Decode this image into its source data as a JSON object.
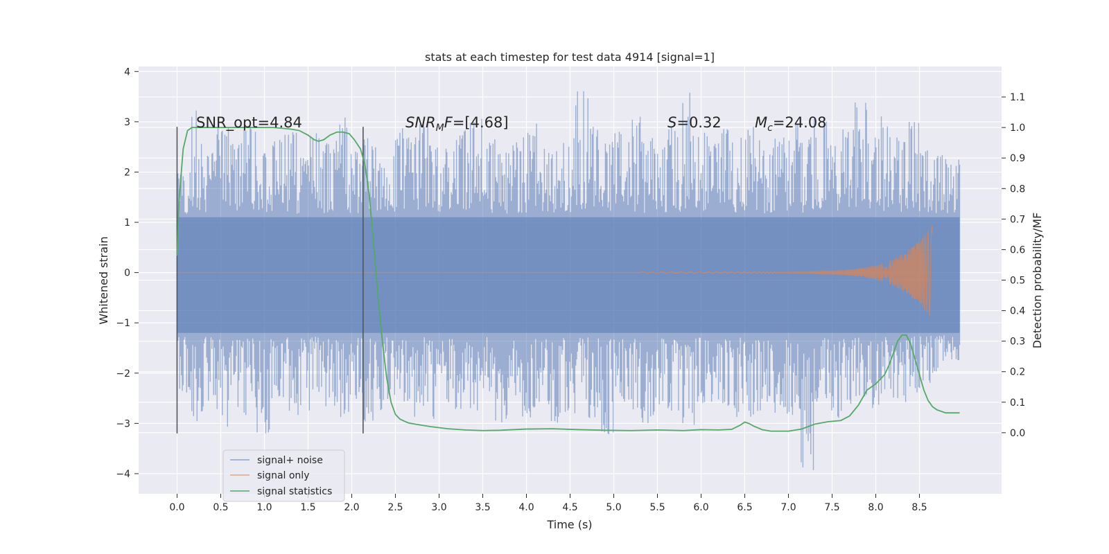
{
  "chart_data": {
    "type": "line",
    "title": "stats at each timestep for test data 4914 [signal=1]",
    "xlabel": "Time (s)",
    "ylabel": "Whitened strain",
    "ylabel_right": "Detection probability/MF",
    "xlim": [
      -0.44,
      9.44
    ],
    "ylim": [
      -4.4,
      4.1
    ],
    "ylim_right": [
      -0.2,
      1.2
    ],
    "x_ticks": [
      "0.0",
      "0.5",
      "1.0",
      "1.5",
      "2.0",
      "2.5",
      "3.0",
      "3.5",
      "4.0",
      "4.5",
      "5.0",
      "5.5",
      "6.0",
      "6.5",
      "7.0",
      "7.5",
      "8.0",
      "8.5"
    ],
    "y_ticks": [
      "4",
      "3",
      "2",
      "1",
      "0",
      "−1",
      "−2",
      "−3",
      "−4"
    ],
    "y_ticks_right": [
      "1.1",
      "1.0",
      "0.9",
      "0.8",
      "0.7",
      "0.6",
      "0.5",
      "0.4",
      "0.3",
      "0.2",
      "0.1",
      "0.0"
    ],
    "vertical_markers": [
      0.0,
      2.13
    ],
    "vertical_marker_range": [
      -3.2,
      2.9
    ],
    "annotations": {
      "snr_opt": "SNR_opt=4.84",
      "snr_mf_sym": "SNR",
      "snr_mf_sub": "M",
      "snr_mf_sym2": "F",
      "snr_mf_val": "=[4.68]",
      "s_sym": "S",
      "s_val": "=0.32",
      "mc_sym": "M",
      "mc_sub": "c",
      "mc_val": "=24.08"
    },
    "series": [
      {
        "name": "signal+ noise",
        "color": "#4c72b0",
        "x_range": [
          0.0,
          8.96
        ],
        "base_envelope": [
          -1.2,
          1.1
        ],
        "spike_tops": [
          2.0,
          3.3,
          2.5,
          2.9,
          2.6,
          3.1,
          2.4,
          2.7,
          3.0,
          2.3,
          2.8,
          2.6,
          3.1,
          2.5,
          2.7,
          2.2,
          2.9,
          2.8,
          3.0,
          2.6,
          2.5,
          2.9,
          3.1,
          2.7,
          2.4,
          2.6,
          2.8,
          3.0,
          2.5,
          2.7,
          3.7,
          2.9,
          2.6,
          2.8,
          3.1,
          2.7,
          2.5,
          2.9,
          3.7,
          2.8,
          2.6,
          3.0,
          2.7,
          2.9,
          2.5,
          2.8,
          3.0,
          2.7,
          3.1,
          2.6,
          2.9,
          3.4,
          2.8,
          3.2,
          2.7,
          3.0,
          2.5,
          2.4,
          2.3
        ],
        "spike_bottoms": [
          -2.4,
          -3.0,
          -2.6,
          -3.1,
          -2.7,
          -2.9,
          -3.2,
          -2.5,
          -2.8,
          -3.0,
          -2.4,
          -2.7,
          -2.9,
          -2.6,
          -3.0,
          -2.8,
          -2.5,
          -2.9,
          -2.7,
          -3.0,
          -2.6,
          -2.8,
          -2.9,
          -2.4,
          -3.1,
          -2.7,
          -2.9,
          -2.6,
          -3.0,
          -2.8,
          -2.7,
          -2.9,
          -3.35,
          -2.6,
          -2.8,
          -3.0,
          -2.7,
          -2.9,
          -3.05,
          -2.6,
          -2.8,
          -2.7,
          -2.9,
          -3.0,
          -2.6,
          -2.8,
          -2.9,
          -4.0,
          -2.7,
          -2.9,
          -2.8,
          -2.6,
          -2.7,
          -2.5,
          -2.6,
          -2.4,
          -2.2,
          -2.0,
          -1.8
        ]
      },
      {
        "name": "signal only",
        "color": "#dd8452",
        "chirp_start": 5.3,
        "chirp_end": 8.65,
        "peak_amplitude": 0.95
      },
      {
        "name": "signal statistics",
        "color": "#55a868",
        "x": [
          0.0,
          0.02,
          0.07,
          0.12,
          0.17,
          0.25,
          0.35,
          0.5,
          0.7,
          0.9,
          1.1,
          1.3,
          1.4,
          1.5,
          1.57,
          1.62,
          1.68,
          1.75,
          1.83,
          1.9,
          1.97,
          2.03,
          2.1,
          2.15,
          2.2,
          2.25,
          2.3,
          2.35,
          2.4,
          2.45,
          2.5,
          2.55,
          2.6,
          2.65,
          2.75,
          2.9,
          3.1,
          3.3,
          3.5,
          3.7,
          4.0,
          4.3,
          4.6,
          4.9,
          5.2,
          5.5,
          5.8,
          6.0,
          6.2,
          6.35,
          6.45,
          6.5,
          6.55,
          6.6,
          6.7,
          6.8,
          7.0,
          7.15,
          7.3,
          7.45,
          7.6,
          7.7,
          7.8,
          7.9,
          8.0,
          8.1,
          8.15,
          8.2,
          8.25,
          8.3,
          8.35,
          8.4,
          8.45,
          8.5,
          8.55,
          8.6,
          8.65,
          8.7,
          8.75,
          8.8,
          8.9,
          8.96
        ],
        "y": [
          0.58,
          0.75,
          0.93,
          0.99,
          1.0,
          1.0,
          1.0,
          1.0,
          1.0,
          1.0,
          1.0,
          0.995,
          0.99,
          0.975,
          0.96,
          0.955,
          0.96,
          0.975,
          0.985,
          0.985,
          0.98,
          0.96,
          0.93,
          0.88,
          0.78,
          0.62,
          0.45,
          0.3,
          0.18,
          0.1,
          0.06,
          0.045,
          0.038,
          0.032,
          0.027,
          0.02,
          0.013,
          0.009,
          0.007,
          0.008,
          0.012,
          0.013,
          0.01,
          0.008,
          0.007,
          0.009,
          0.007,
          0.01,
          0.009,
          0.011,
          0.025,
          0.035,
          0.03,
          0.022,
          0.01,
          0.005,
          0.005,
          0.012,
          0.028,
          0.036,
          0.04,
          0.055,
          0.09,
          0.14,
          0.16,
          0.19,
          0.22,
          0.26,
          0.3,
          0.32,
          0.32,
          0.29,
          0.24,
          0.19,
          0.14,
          0.105,
          0.085,
          0.075,
          0.07,
          0.065,
          0.065,
          0.065
        ]
      }
    ],
    "legend": {
      "position": "lower-left",
      "entries": [
        "signal+ noise",
        "signal only",
        "signal statistics"
      ]
    }
  }
}
